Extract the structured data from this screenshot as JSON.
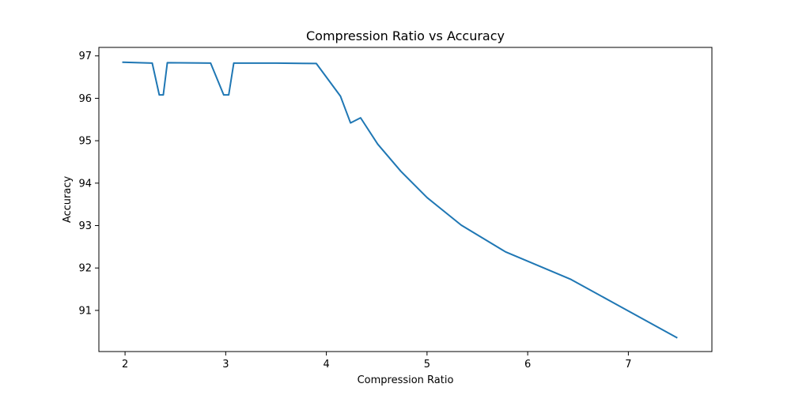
{
  "chart_data": {
    "type": "line",
    "title": "Compression Ratio vs Accuracy",
    "xlabel": "Compression Ratio",
    "ylabel": "Accuracy",
    "xlim": [
      1.74,
      7.83
    ],
    "ylim": [
      90.03,
      97.2
    ],
    "xticks": [
      "2",
      "3",
      "4",
      "5",
      "6",
      "7"
    ],
    "yticks": [
      "91",
      "92",
      "93",
      "94",
      "95",
      "96",
      "97"
    ],
    "grid": false,
    "series": [
      {
        "color": "#1f77b4",
        "x": [
          1.98,
          2.27,
          2.34,
          2.38,
          2.42,
          2.85,
          2.98,
          3.03,
          3.08,
          3.5,
          3.9,
          4.14,
          4.24,
          4.34,
          4.51,
          4.74,
          5.0,
          5.34,
          5.78,
          6.43,
          7.48
        ],
        "y": [
          96.85,
          96.83,
          96.08,
          96.08,
          96.84,
          96.83,
          96.08,
          96.08,
          96.83,
          96.83,
          96.82,
          96.05,
          95.42,
          95.54,
          94.92,
          94.28,
          93.66,
          93.01,
          92.38,
          91.73,
          90.36
        ]
      }
    ]
  }
}
